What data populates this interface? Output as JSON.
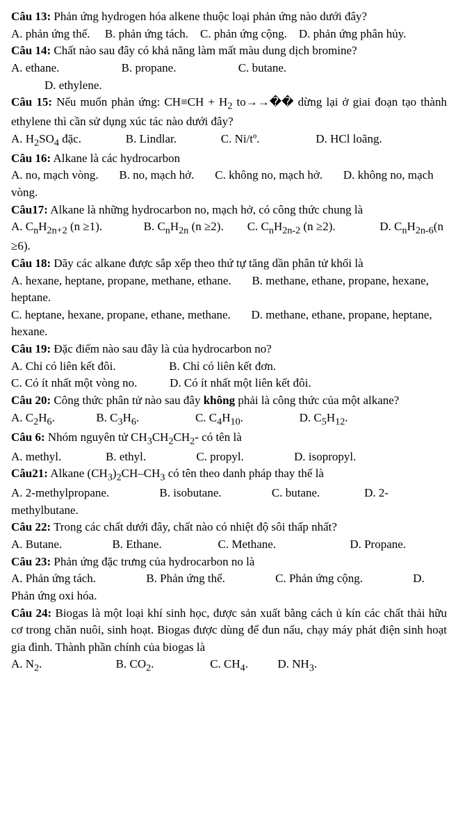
{
  "q13": {
    "title": "Câu 13:",
    "text": " Phản ứng hydrogen hóa alkene thuộc loại phản ứng nào dưới đây?",
    "a": "A. phản ứng thế.",
    "b": "B. phản ứng tách.",
    "c": "C. phản ứng cộng.",
    "d": "D. phản ứng phân hủy."
  },
  "q14": {
    "title": "Câu 14:",
    "text": " Chất nào sau đây có khả năng làm mất màu dung dịch bromine?",
    "a": "A. ethane.",
    "b": "B. propane.",
    "c": "C. butane.",
    "d": "D. ethylene."
  },
  "q15": {
    "title": "Câu 15:",
    "text_1": " Nếu muốn phản ứng: CH≡CH + H",
    "sub1": "2",
    "text_2": " to→→�� dừng lại ở giai đoạn tạo thành ethylene thì cần sử dụng xúc tác nào dưới đây?",
    "a1": "A. H",
    "a_sub1": "2",
    "a2": "SO",
    "a_sub2": "4",
    "a3": " đặc.",
    "b": "B. Lindlar.",
    "c": "C. Ni/tº.",
    "d": "D. HCl loãng."
  },
  "q16": {
    "title": "Câu 16:",
    "text": " Alkane là các hydrocarbon",
    "a": "A. no, mạch vòng.",
    "b": "B. no, mạch hở.",
    "c": "C. không no, mạch hở.",
    "d": "D. không no, mạch vòng."
  },
  "q17": {
    "title": "Câu17:",
    "text": " Alkane là những hydrocarbon no, mạch hở, có công thức chung là",
    "a1": "A.  C",
    "a_n": "n",
    "a2": "H",
    "a_2n2": "2n+2",
    "a3": "  (n  ≥1).",
    "b1": "B.  C",
    "b_n": "n",
    "b2": "H",
    "b_2n": "2n",
    "b3": "  (n  ≥2).",
    "c1": "C.  C",
    "c_n": "n",
    "c2": "H",
    "c_2n2": "2n-2",
    "c3": "  (n ≥2).",
    "d1": "D. C",
    "d_n": "n",
    "d2": "H",
    "d_2n6": "2n-6",
    "d3": "(n ≥6)."
  },
  "q18": {
    "title": "Câu 18:",
    "text": " Dãy các alkane được sắp xếp theo thứ tự tăng dần phân tử khối là",
    "a": "A. hexane, heptane, propane, methane, ethane.",
    "b": "B. methane, ethane, propane, hexane, heptane.",
    "c": "C. heptane, hexane, propane, ethane, methane.",
    "d": "D. methane, ethane, propane, heptane, hexane."
  },
  "q19": {
    "title": "Câu 19:",
    "text": " Đặc điểm nào sau đây là của hydrocarbon no?",
    "a": "A. Chỉ có liên kết đôi.",
    "b": "B. Chỉ có liên kết đơn.",
    "c": "C. Có ít nhất một vòng no.",
    "d": "D. Có ít nhất một liên kết đôi."
  },
  "q20": {
    "title": "Câu 20:",
    "text": " Công thức phân tử nào sau đây ",
    "bold_word": "không",
    "text2": " phải là công thức của một alkane?",
    "a1": "A. C",
    "a_s1": "2",
    "a2": "H",
    "a_s2": "6",
    "a3": ".",
    "b1": "B. C",
    "b_s1": "3",
    "b2": "H",
    "b_s2": "6",
    "b3": ".",
    "c1": "C. C",
    "c_s1": "4",
    "c2": "H",
    "c_s2": "10",
    "c3": ".",
    "d1": "D. C",
    "d_s1": "5",
    "d2": "H",
    "d_s2": "12",
    "d3": "."
  },
  "q6": {
    "title": "Câu 6:",
    "text1": " Nhóm nguyên tử CH",
    "s1": "3",
    "text2": "CH",
    "s2": "2",
    "text3": "CH",
    "s3": "2",
    "text4": "- có tên là",
    "a": "A.    methyl.",
    "b": "B.    ethyl.",
    "c": "C.    propyl.",
    "d": "D. isopropyl."
  },
  "q21": {
    "title": "Câu21:",
    "text1": " Alkane (CH",
    "s1": "3",
    "text2": ")",
    "s2": "2",
    "text3": "CH–CH",
    "s3": "3",
    "text4": " có tên theo danh pháp thay thế là",
    "a": "A.        2-methylpropane.",
    "b": "B.        isobutane.",
    "c": "C. butane.",
    "d": "D. 2-methylbutane."
  },
  "q22": {
    "title": "Câu 22:",
    "text": " Trong các chất dưới đây, chất nào có nhiệt độ sôi thấp nhất?",
    "a": "A. Butane.",
    "b": "B. Ethane.",
    "c": "C. Methane.",
    "d": "D. Propane."
  },
  "q23": {
    "title": "Câu 23:",
    "text": " Phản ứng đặc trưng của hydrocarbon no là",
    "a": "A. Phản ứng tách.",
    "b": "B. Phản ứng thế.",
    "c": "C. Phản ứng cộng.",
    "d": "D. Phản ứng oxi hóa."
  },
  "q24": {
    "title": "Câu 24:",
    "text": " Biogas là một loại khí sinh học, được sản xuất bằng cách ủ kín các chất thải hữu cơ trong chăn nuôi, sinh hoạt. Biogas được dùng để đun nấu, chạy máy phát điện sinh hoạt gia đình. Thành phần chính của biogas là",
    "a1": "A. N",
    "a_s": "2",
    "a2": ".",
    "b1": "B. CO",
    "b_s": "2",
    "b2": ".",
    "c1": "C. CH",
    "c_s": "4",
    "c2": ".",
    "d1": "D. NH",
    "d_s": "3",
    "d2": "."
  }
}
